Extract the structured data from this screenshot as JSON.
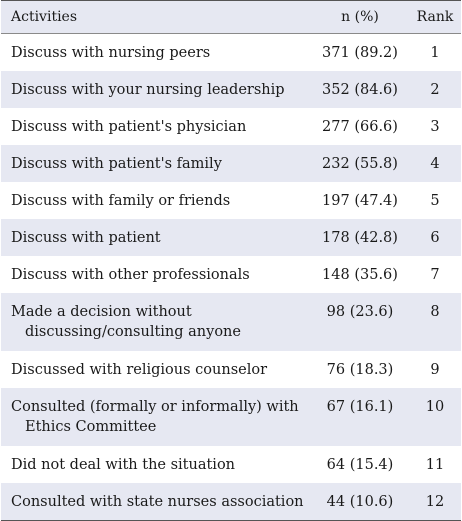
{
  "table": {
    "headers": {
      "activities": "Activities",
      "n_pct": "n (%)",
      "rank": "Rank"
    },
    "rows": [
      {
        "activity": "Discuss with nursing peers",
        "n_pct": "371 (89.2)",
        "rank": "1"
      },
      {
        "activity": "Discuss with your nursing leadership",
        "n_pct": "352 (84.6)",
        "rank": "2"
      },
      {
        "activity": "Discuss with patient's physician",
        "n_pct": "277 (66.6)",
        "rank": "3"
      },
      {
        "activity": "Discuss with patient's family",
        "n_pct": "232 (55.8)",
        "rank": "4"
      },
      {
        "activity": "Discuss with family or friends",
        "n_pct": "197 (47.4)",
        "rank": "5"
      },
      {
        "activity": "Discuss with patient",
        "n_pct": "178 (42.8)",
        "rank": "6"
      },
      {
        "activity": "Discuss with other professionals",
        "n_pct": "148 (35.6)",
        "rank": "7"
      },
      {
        "activity": "Made a decision without discussing/consulting anyone",
        "n_pct": "98 (23.6)",
        "rank": "8"
      },
      {
        "activity": "Discussed with religious counselor",
        "n_pct": "76 (18.3)",
        "rank": "9"
      },
      {
        "activity": "Consulted (formally or informally) with Ethics Committee",
        "n_pct": "67 (16.1)",
        "rank": "10"
      },
      {
        "activity": "Did not deal with the situation",
        "n_pct": "64 (15.4)",
        "rank": "11"
      },
      {
        "activity": "Consulted with state nurses association",
        "n_pct": "44 (10.6)",
        "rank": "12"
      }
    ]
  }
}
